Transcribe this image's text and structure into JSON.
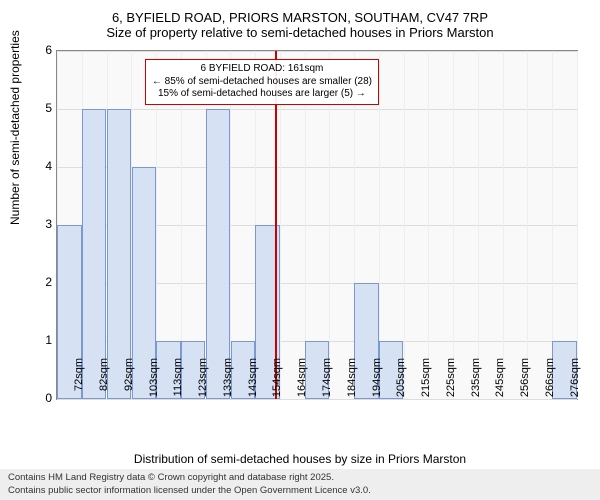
{
  "title_line1": "6, BYFIELD ROAD, PRIORS MARSTON, SOUTHAM, CV47 7RP",
  "title_line2": "Size of property relative to semi-detached houses in Priors Marston",
  "chart": {
    "type": "bar",
    "plot_bg": "#f9f9f9",
    "grid_color": "#dddddd",
    "vgrid_color": "#eeeeee",
    "bar_fill": "#d6e2f3",
    "bar_border": "#7a9acf",
    "refline_color": "#cc0000",
    "annot_border": "#cc0000",
    "x_categories": [
      "72sqm",
      "82sqm",
      "92sqm",
      "103sqm",
      "113sqm",
      "123sqm",
      "133sqm",
      "143sqm",
      "154sqm",
      "164sqm",
      "174sqm",
      "184sqm",
      "194sqm",
      "205sqm",
      "215sqm",
      "225sqm",
      "235sqm",
      "245sqm",
      "256sqm",
      "266sqm",
      "276sqm"
    ],
    "values": [
      3,
      5,
      5,
      4,
      1,
      1,
      5,
      1,
      3,
      0,
      1,
      0,
      2,
      1,
      0,
      0,
      0,
      0,
      0,
      0,
      1
    ],
    "y": {
      "min": 0,
      "max": 6,
      "step": 1,
      "label": "Number of semi-detached properties"
    },
    "x_label": "Distribution of semi-detached houses by size in Priors Marston",
    "label_fontsize": 12,
    "tick_fontsize": 11,
    "bar_width_ratio": 0.98,
    "reference_index": 8.8,
    "annotation": {
      "line1": "6 BYFIELD ROAD: 161sqm",
      "line2": "← 85% of semi-detached houses are smaller (28)",
      "line3": "15% of semi-detached houses are larger (5) →"
    }
  },
  "footer": {
    "line1": "Contains HM Land Registry data © Crown copyright and database right 2025.",
    "line2": "Contains public sector information licensed under the Open Government Licence v3.0."
  }
}
